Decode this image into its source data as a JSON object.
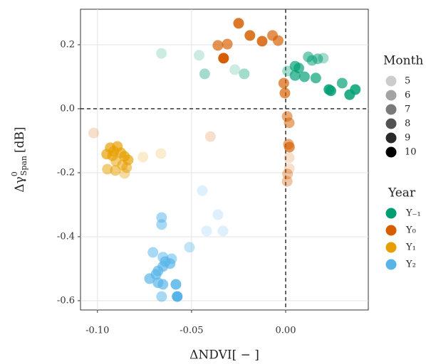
{
  "chart_data": {
    "type": "scatter",
    "x_label": "ΔNDVI[ − ]",
    "y_label": {
      "base": "Δγ",
      "sup": "0",
      "sub": "Span",
      "unit": "[dB]"
    },
    "xlim": [
      -0.109,
      0.0439
    ],
    "ylim": [
      -0.629,
      0.311
    ],
    "xticks": [
      {
        "value": -0.1,
        "label": "-0.10"
      },
      {
        "value": -0.05,
        "label": "-0.05"
      },
      {
        "value": 0,
        "label": "0.00"
      }
    ],
    "yticks": [
      {
        "value": -0.6,
        "label": "-0.6"
      },
      {
        "value": -0.4,
        "label": "-0.4"
      },
      {
        "value": -0.2,
        "label": "-0.2"
      },
      {
        "value": 0,
        "label": "0.0"
      },
      {
        "value": 0.2,
        "label": "0.2"
      }
    ],
    "grid": true,
    "hline": 0,
    "vline": 0,
    "month_legend": {
      "title": "Month",
      "values": [
        5,
        6,
        7,
        8,
        9,
        10
      ]
    },
    "year_legend_title": "Year",
    "series": [
      {
        "name": "Y₋₁",
        "color": "#009E73",
        "x": [
          -0.066,
          -0.046,
          -0.043,
          -0.027,
          -0.022,
          0.001,
          0.005,
          0.007,
          0.005,
          0.01,
          0.012,
          0.014,
          0.017,
          0.02,
          0.016,
          0.023,
          0.024,
          0.03,
          0.034,
          0.037
        ],
        "values": [
          0.173,
          0.167,
          0.109,
          0.122,
          0.109,
          0.118,
          0.133,
          0.127,
          0.104,
          0.1,
          0.162,
          0.151,
          0.156,
          0.158,
          0.096,
          0.06,
          0.056,
          0.08,
          0.044,
          0.06
        ],
        "month": [
          5,
          5,
          6,
          5,
          6,
          6,
          8,
          8,
          8,
          8,
          7,
          7,
          7,
          6,
          8,
          9,
          9,
          8,
          9,
          9
        ]
      },
      {
        "name": "Y₀",
        "color": "#D55E00",
        "x": [
          -0.025,
          -0.019,
          -0.0125,
          -0.007,
          -0.004,
          -0.036,
          -0.031,
          -0.033,
          -0.001,
          -0.0004,
          0.0008,
          0.0019,
          0.0015,
          0.002,
          0.0019,
          0.0019,
          0.001,
          0.0008,
          -0.102,
          -0.04
        ],
        "values": [
          0.267,
          0.229,
          0.211,
          0.229,
          0.213,
          0.198,
          0.202,
          0.158,
          0.08,
          0.049,
          -0.024,
          -0.044,
          -0.111,
          -0.12,
          -0.153,
          -0.187,
          -0.204,
          -0.227,
          -0.076,
          -0.087
        ],
        "month": [
          9,
          9,
          9,
          8,
          8,
          8,
          8,
          10,
          8,
          8,
          7,
          7,
          7,
          8,
          5,
          5,
          6,
          6,
          5,
          5
        ]
      },
      {
        "name": "Y₁",
        "color": "#E69F00",
        "x": [
          -0.0932,
          -0.0894,
          -0.0913,
          -0.0951,
          -0.092,
          -0.0875,
          -0.0856,
          -0.0837,
          -0.0902,
          -0.0867,
          -0.0845,
          -0.0947,
          -0.0905,
          -0.0856,
          -0.0758,
          -0.0663
        ],
        "values": [
          -0.122,
          -0.118,
          -0.133,
          -0.142,
          -0.147,
          -0.138,
          -0.149,
          -0.16,
          -0.164,
          -0.176,
          -0.184,
          -0.189,
          -0.193,
          -0.202,
          -0.151,
          -0.14
        ],
        "month": [
          8,
          8,
          8,
          8,
          8,
          8,
          8,
          8,
          7,
          7,
          7,
          7,
          7,
          6,
          5,
          5
        ]
      },
      {
        "name": "Y₂",
        "color": "#56B4E9",
        "x": [
          -0.0443,
          -0.036,
          -0.042,
          -0.0333,
          -0.0511,
          -0.0659,
          -0.0659,
          -0.0606,
          -0.0652,
          -0.064,
          -0.0614,
          -0.0705,
          -0.0652,
          -0.0678,
          -0.0689,
          -0.0723,
          -0.0652,
          -0.0678,
          -0.0583,
          -0.0576,
          -0.0659
        ],
        "values": [
          -0.256,
          -0.331,
          -0.382,
          -0.382,
          -0.433,
          -0.34,
          -0.362,
          -0.469,
          -0.464,
          -0.478,
          -0.484,
          -0.449,
          -0.493,
          -0.507,
          -0.518,
          -0.531,
          -0.549,
          -0.544,
          -0.549,
          -0.587,
          -0.587
        ],
        "month": [
          5,
          5,
          5,
          5,
          6,
          7,
          7,
          7,
          7,
          8,
          8,
          7,
          8,
          8,
          8,
          8,
          8,
          8,
          9,
          10,
          7
        ]
      }
    ]
  }
}
